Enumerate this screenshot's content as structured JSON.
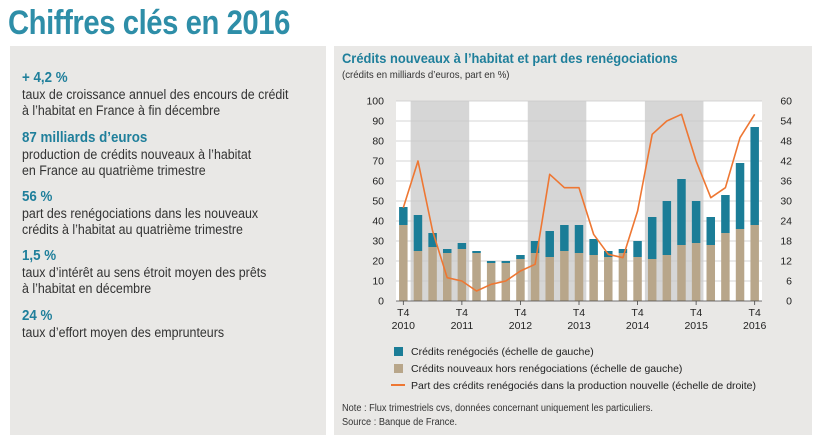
{
  "page_title": "Chiffres clés en 2016",
  "key_figures": [
    {
      "value": "+ 4,2 %",
      "desc": "taux de croissance annuel des encours de crédit\nà l’habitat en France à fin décembre"
    },
    {
      "value": "87 milliards d’euros",
      "desc": "production de crédits nouveaux à l’habitat\nen France au quatrième trimestre"
    },
    {
      "value": "56 %",
      "desc": "part des renégociations dans les nouveaux\ncrédits à l’habitat au quatrième trimestre"
    },
    {
      "value": "1,5 %",
      "desc": "taux d’intérêt au sens étroit moyen des prêts\nà l’habitat en décembre"
    },
    {
      "value": "24 %",
      "desc": "taux d’effort moyen des emprunteurs"
    }
  ],
  "chart": {
    "title": "Crédits nouveaux à l’habitat et part des renégociations",
    "subtitle": "(crédits en milliards d’euros, part en %)",
    "legend": {
      "renegotiated": "Crédits renégociés (échelle de gauche)",
      "new_excl": "Crédits nouveaux hors renégociations (échelle de gauche)",
      "share": "Part des crédits renégociés dans la production nouvelle (échelle de droite)"
    },
    "note": "Note : Flux trimestriels cvs, données concernant uniquement les particuliers.",
    "source": "Source : Banque de France.",
    "colors": {
      "renegotiated": "#1b7d97",
      "new_excl": "#b8a68a",
      "share": "#ee7733",
      "shade": "#d6d6d6"
    }
  },
  "chart_data": {
    "type": "bar",
    "left_ylim": [
      0,
      100
    ],
    "right_ylim": [
      0,
      60
    ],
    "left_ticks": [
      "0",
      "10",
      "20",
      "30",
      "40",
      "50",
      "60",
      "70",
      "80",
      "90",
      "100"
    ],
    "right_ticks": [
      "0",
      "6",
      "12",
      "18",
      "24",
      "30",
      "36",
      "42",
      "48",
      "54",
      "60"
    ],
    "x_tick_labels": [
      {
        "q": "T4",
        "year": "2010"
      },
      {
        "q": "T4",
        "year": "2011"
      },
      {
        "q": "T4",
        "year": "2012"
      },
      {
        "q": "T4",
        "year": "2013"
      },
      {
        "q": "T4",
        "year": "2014"
      },
      {
        "q": "T4",
        "year": "2015"
      },
      {
        "q": "T4",
        "year": "2016"
      }
    ],
    "categories": [
      "2010T4",
      "2011T1",
      "2011T2",
      "2011T3",
      "2011T4",
      "2012T1",
      "2012T2",
      "2012T3",
      "2012T4",
      "2013T1",
      "2013T2",
      "2013T3",
      "2013T4",
      "2014T1",
      "2014T2",
      "2014T3",
      "2014T4",
      "2015T1",
      "2015T2",
      "2015T3",
      "2015T4",
      "2016T1",
      "2016T2",
      "2016T3",
      "2016T4"
    ],
    "series": [
      {
        "name": "Crédits nouveaux hors renégociations (échelle de gauche)",
        "values": [
          38,
          25,
          27,
          24,
          26,
          24,
          19,
          19,
          21,
          24,
          22,
          25,
          24,
          23,
          22,
          24,
          22,
          21,
          23,
          28,
          29,
          28,
          34,
          36,
          38
        ]
      },
      {
        "name": "Crédits renégociés (échelle de gauche)",
        "values": [
          9,
          18,
          7,
          2,
          3,
          1,
          1,
          1,
          2,
          6,
          13,
          13,
          14,
          8,
          3,
          2,
          8,
          21,
          27,
          33,
          21,
          14,
          19,
          33,
          49
        ]
      },
      {
        "name": "Part des crédits renégociés dans la production nouvelle (échelle de droite)",
        "values": [
          28,
          42,
          21,
          7,
          6,
          3,
          5,
          6,
          9,
          11,
          38,
          34,
          34,
          20,
          14,
          13,
          27,
          50,
          54,
          56,
          42,
          31,
          34,
          49,
          56
        ]
      }
    ],
    "shaded_years": [
      "2011",
      "2013",
      "2015"
    ]
  }
}
